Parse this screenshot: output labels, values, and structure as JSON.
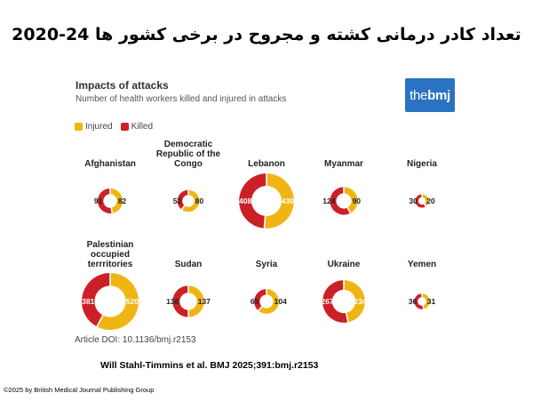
{
  "page_title": "تعداد کادر درمانی کشته و مجروح در برخی کشور ها 24-2020",
  "panel_title": "Impacts of attacks",
  "panel_subtitle": "Number of health workers killed and injured in attacks",
  "logo": {
    "prefix": "the",
    "suffix": "bmj"
  },
  "legend": [
    {
      "label": "Injured",
      "color": "#f0b512"
    },
    {
      "label": "Killed",
      "color": "#cc2029"
    }
  ],
  "doi": "Article DOI: 10.1136/bmj.r2153",
  "citation": "Will Stahl-Timmins et al. BMJ 2025;391:bmj.r2153",
  "copyright": "©2025 by British Medical Journal Publishing Group",
  "colors": {
    "injured": "#f0b512",
    "killed": "#cc2029"
  },
  "chart_data": {
    "type": "pie",
    "variant": "donut",
    "series_names": [
      "Injured",
      "Killed"
    ],
    "items": [
      {
        "country": [
          "Afghanistan"
        ],
        "injured": 82,
        "killed": 91
      },
      {
        "country": [
          "Democratic",
          "Republic of the",
          "Congo"
        ],
        "injured": 80,
        "killed": 52
      },
      {
        "country": [
          "Lebanon"
        ],
        "injured": 430,
        "killed": 408
      },
      {
        "country": [
          "Myanmar"
        ],
        "injured": 90,
        "killed": 124
      },
      {
        "country": [
          "Nigeria"
        ],
        "injured": 20,
        "killed": 30
      },
      {
        "country": [
          "Palestinian",
          "occupied",
          "terrritories"
        ],
        "injured": 520,
        "killed": 381
      },
      {
        "country": [
          "Sudan"
        ],
        "injured": 137,
        "killed": 138
      },
      {
        "country": [
          "Syria"
        ],
        "injured": 104,
        "killed": 65
      },
      {
        "country": [
          "Ukraine"
        ],
        "injured": 234,
        "killed": 267
      },
      {
        "country": [
          "Yemen"
        ],
        "injured": 31,
        "killed": 36
      }
    ]
  }
}
